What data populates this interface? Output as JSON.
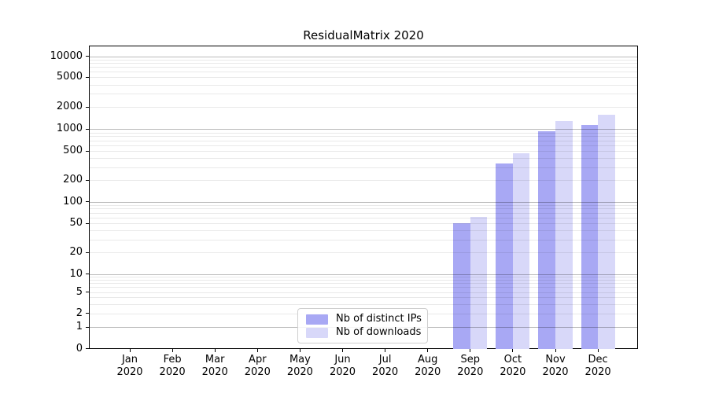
{
  "title": "ResidualMatrix 2020",
  "chart_data": {
    "type": "bar",
    "title": "ResidualMatrix 2020",
    "categories": [
      "Jan",
      "Feb",
      "Mar",
      "Apr",
      "May",
      "Jun",
      "Jul",
      "Aug",
      "Sep",
      "Oct",
      "Nov",
      "Dec"
    ],
    "year": "2020",
    "series": [
      {
        "name": "Nb of distinct IPs",
        "color": "#a8a8f4",
        "values": [
          null,
          null,
          null,
          null,
          null,
          null,
          null,
          null,
          50,
          335,
          935,
          1140
        ]
      },
      {
        "name": "Nb of downloads",
        "color": "#d8d8f9",
        "values": [
          null,
          null,
          null,
          null,
          null,
          null,
          null,
          null,
          62,
          465,
          1290,
          1580
        ]
      }
    ],
    "y_axis": {
      "scale": "symlog",
      "ticks": [
        0,
        1,
        2,
        5,
        10,
        20,
        50,
        100,
        200,
        500,
        1000,
        2000,
        5000,
        10000
      ],
      "range": [
        0,
        20000
      ],
      "major_gridline_values": [
        1,
        10,
        100,
        1000,
        10000
      ],
      "minor_grid": true
    },
    "x_axis": {
      "tick_label_lines": [
        "month",
        "year"
      ]
    },
    "legend": {
      "position": "lower center",
      "entries": [
        "Nb of distinct IPs",
        "Nb of downloads"
      ]
    },
    "grid": "horizontal only, drawn over bars"
  }
}
